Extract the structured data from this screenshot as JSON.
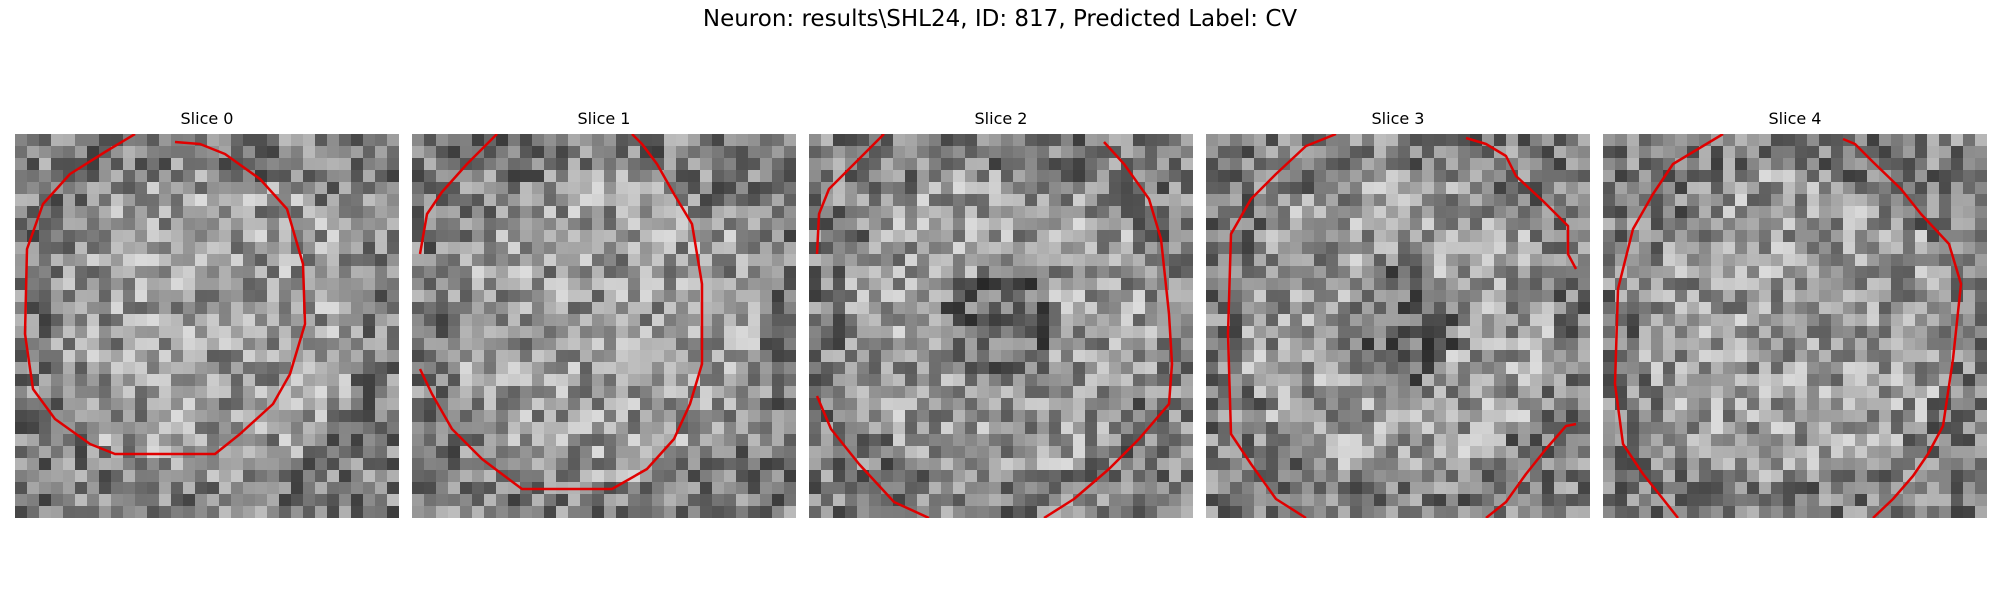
{
  "title": "Neuron: results\\SHL24, ID: 817, Predicted Label: CV",
  "colors": {
    "contour": "#e00000",
    "background": "#ffffff"
  },
  "colormap": "gray",
  "slices": [
    {
      "label": "Slice 0"
    },
    {
      "label": "Slice 1"
    },
    {
      "label": "Slice 2"
    },
    {
      "label": "Slice 3"
    },
    {
      "label": "Slice 4"
    }
  ]
}
